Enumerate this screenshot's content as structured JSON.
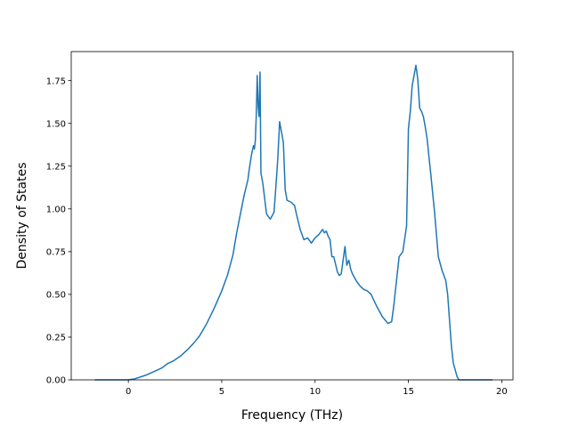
{
  "chart_data": {
    "type": "line",
    "title": "",
    "xlabel": "Frequency (THz)",
    "ylabel": "Density of States",
    "xlim": [
      -3.06,
      20.6
    ],
    "ylim": [
      0.0,
      1.92
    ],
    "xticks": [
      0,
      5,
      10,
      15,
      20
    ],
    "yticks": [
      0.0,
      0.25,
      0.5,
      0.75,
      1.0,
      1.25,
      1.5,
      1.75
    ],
    "xtick_labels": [
      "0",
      "5",
      "10",
      "15",
      "20"
    ],
    "ytick_labels": [
      "0.00",
      "0.25",
      "0.50",
      "0.75",
      "1.00",
      "1.25",
      "1.50",
      "1.75"
    ],
    "grid": false,
    "colors": {
      "line": "#1f77b4",
      "axes": "#000000",
      "background": "#ffffff"
    },
    "series": [
      {
        "x": [
          -1.8,
          -1.0,
          -0.5,
          0.0,
          0.3,
          0.6,
          1.0,
          1.4,
          1.8,
          2.1,
          2.4,
          2.6,
          2.8,
          3.2,
          3.5,
          3.8,
          4.2,
          4.6,
          5.0,
          5.3,
          5.6,
          5.8,
          6.0,
          6.2,
          6.4,
          6.5,
          6.6,
          6.7,
          6.75,
          6.8,
          6.85,
          6.9,
          6.95,
          7.0,
          7.05,
          7.1,
          7.2,
          7.4,
          7.6,
          7.8,
          7.9,
          8.0,
          8.1,
          8.2,
          8.3,
          8.4,
          8.5,
          8.7,
          8.9,
          9.0,
          9.2,
          9.4,
          9.6,
          9.8,
          10.0,
          10.2,
          10.4,
          10.5,
          10.6,
          10.7,
          10.8,
          10.9,
          11.0,
          11.2,
          11.3,
          11.4,
          11.5,
          11.6,
          11.7,
          11.8,
          11.85,
          11.9,
          12.0,
          12.2,
          12.4,
          12.6,
          12.8,
          13.0,
          13.3,
          13.6,
          13.9,
          14.1,
          14.2,
          14.3,
          14.5,
          14.7,
          14.9,
          15.0,
          15.1,
          15.2,
          15.4,
          15.5,
          15.6,
          15.7,
          15.8,
          15.9,
          16.0,
          16.2,
          16.4,
          16.6,
          16.8,
          17.0,
          17.1,
          17.2,
          17.3,
          17.4,
          17.5,
          17.6,
          17.7,
          17.8,
          18.0,
          18.5,
          19.0,
          19.5
        ],
        "y": [
          0.0,
          0.0,
          0.0,
          0.0,
          0.005,
          0.015,
          0.03,
          0.05,
          0.07,
          0.095,
          0.11,
          0.125,
          0.14,
          0.18,
          0.215,
          0.255,
          0.33,
          0.42,
          0.52,
          0.61,
          0.73,
          0.86,
          0.97,
          1.08,
          1.17,
          1.25,
          1.32,
          1.37,
          1.35,
          1.4,
          1.55,
          1.78,
          1.6,
          1.54,
          1.8,
          1.21,
          1.15,
          0.97,
          0.94,
          0.98,
          1.13,
          1.29,
          1.51,
          1.45,
          1.39,
          1.11,
          1.05,
          1.04,
          1.02,
          0.97,
          0.88,
          0.82,
          0.83,
          0.8,
          0.83,
          0.85,
          0.88,
          0.86,
          0.87,
          0.84,
          0.82,
          0.72,
          0.72,
          0.63,
          0.61,
          0.62,
          0.7,
          0.78,
          0.67,
          0.7,
          0.68,
          0.65,
          0.62,
          0.58,
          0.55,
          0.53,
          0.52,
          0.5,
          0.43,
          0.37,
          0.33,
          0.34,
          0.42,
          0.52,
          0.72,
          0.75,
          0.9,
          1.47,
          1.57,
          1.72,
          1.84,
          1.76,
          1.59,
          1.57,
          1.54,
          1.48,
          1.41,
          1.2,
          0.98,
          0.72,
          0.64,
          0.58,
          0.5,
          0.35,
          0.2,
          0.1,
          0.06,
          0.02,
          0.0,
          0.0,
          0.0,
          0.0,
          0.0,
          0.0
        ]
      }
    ]
  }
}
